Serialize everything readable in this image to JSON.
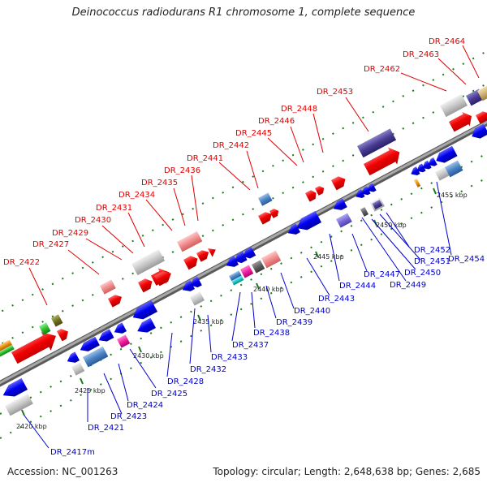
{
  "title": "Deinococcus radiodurans R1 chromosome 1, complete sequence",
  "accession": "Accession: NC_001263",
  "summary": "Topology: circular; Length: 2,648,638 bp; Genes: 2,685",
  "colors": {
    "backbone": "#8a8a8a",
    "label_top": "#e00000",
    "label_bottom": "#0000cc",
    "ticks": "#1a7a1a"
  },
  "scale_ticks": [
    {
      "label": "2420 kbp"
    },
    {
      "label": "2425 kbp"
    },
    {
      "label": "2430 kbp"
    },
    {
      "label": "2435 kbp"
    },
    {
      "label": "2440 kbp"
    },
    {
      "label": "2445 kbp"
    },
    {
      "label": "2450 kbp"
    },
    {
      "label": "2455 kbp"
    }
  ],
  "genes_top": [
    {
      "name": "DR_2422"
    },
    {
      "name": "DR_2427"
    },
    {
      "name": "DR_2429"
    },
    {
      "name": "DR_2430"
    },
    {
      "name": "DR_2431"
    },
    {
      "name": "DR_2434"
    },
    {
      "name": "DR_2435"
    },
    {
      "name": "DR_2436"
    },
    {
      "name": "DR_2441"
    },
    {
      "name": "DR_2442"
    },
    {
      "name": "DR_2445"
    },
    {
      "name": "DR_2446"
    },
    {
      "name": "DR_2448"
    },
    {
      "name": "DR_2453"
    },
    {
      "name": "DR_2462"
    },
    {
      "name": "DR_2463"
    },
    {
      "name": "DR_2464"
    }
  ],
  "genes_bottom": [
    {
      "name": "DR_2417m"
    },
    {
      "name": "DR_2421"
    },
    {
      "name": "DR_2423"
    },
    {
      "name": "DR_2424"
    },
    {
      "name": "DR_2425"
    },
    {
      "name": "DR_2428"
    },
    {
      "name": "DR_2432"
    },
    {
      "name": "DR_2433"
    },
    {
      "name": "DR_2437"
    },
    {
      "name": "DR_2438"
    },
    {
      "name": "DR_2439"
    },
    {
      "name": "DR_2440"
    },
    {
      "name": "DR_2443"
    },
    {
      "name": "DR_2444"
    },
    {
      "name": "DR_2447"
    },
    {
      "name": "DR_2449"
    },
    {
      "name": "DR_2450"
    },
    {
      "name": "DR_2451"
    },
    {
      "name": "DR_2452"
    },
    {
      "name": "DR_2454"
    }
  ]
}
